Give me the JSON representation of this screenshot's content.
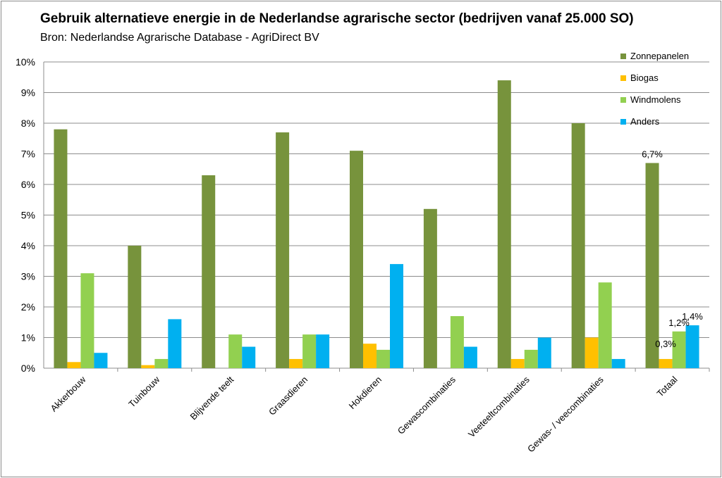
{
  "title": "Gebruik alternatieve energie in de Nederlandse agrarische sector (bedrijven vanaf 25.000 SO)",
  "subtitle": "Bron: Nederlandse Agrarische Database - AgriDirect BV",
  "chart_data": {
    "type": "bar",
    "categories": [
      "Akkerbouw",
      "Tuinbouw",
      "Blijvende teelt",
      "Graasdieren",
      "Hokdieren",
      "Gewascombinaties",
      "Veeteeltcombinaties",
      "Gewas- / veecombinaties",
      "Totaal"
    ],
    "series": [
      {
        "name": "Zonnepanelen",
        "color": "#77933c",
        "values": [
          7.8,
          4.0,
          6.3,
          7.7,
          7.1,
          5.2,
          9.4,
          8.0,
          6.7
        ]
      },
      {
        "name": "Biogas",
        "color": "#ffc000",
        "values": [
          0.2,
          0.1,
          0.0,
          0.3,
          0.8,
          0.0,
          0.3,
          1.0,
          0.3
        ]
      },
      {
        "name": "Windmolens",
        "color": "#92d050",
        "values": [
          3.1,
          0.3,
          1.1,
          1.1,
          0.6,
          1.7,
          0.6,
          2.8,
          1.2
        ]
      },
      {
        "name": "Anders",
        "color": "#00b0f0",
        "values": [
          0.5,
          1.6,
          0.7,
          1.1,
          3.4,
          0.7,
          1.0,
          0.3,
          1.4
        ]
      }
    ],
    "data_labels": [
      {
        "category": "Totaal",
        "series": "Zonnepanelen",
        "text": "6,7%"
      },
      {
        "category": "Totaal",
        "series": "Biogas",
        "text": "0,3%"
      },
      {
        "category": "Totaal",
        "series": "Windmolens",
        "text": "1,2%"
      },
      {
        "category": "Totaal",
        "series": "Anders",
        "text": "1,4%"
      }
    ],
    "y_ticks": [
      "0%",
      "1%",
      "2%",
      "3%",
      "4%",
      "5%",
      "6%",
      "7%",
      "8%",
      "9%",
      "10%"
    ],
    "ylim": [
      0,
      10
    ],
    "grid": true,
    "legend_position": "top-right"
  }
}
